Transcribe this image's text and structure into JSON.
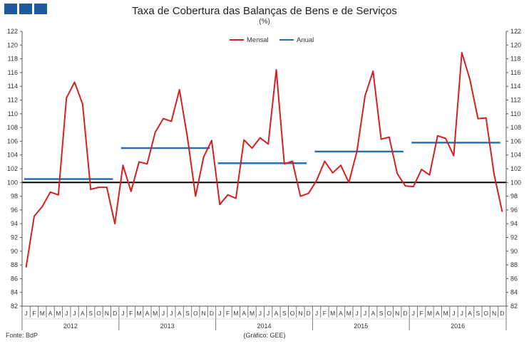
{
  "header": {
    "title": "Taxa de Cobertura das Balanças de Bens e de Serviços",
    "subtitle": "(%)"
  },
  "footer": {
    "source": "Fonte: BdP",
    "credit": "(Gráfico: GEE)"
  },
  "colors": {
    "mensal": "#d42020",
    "anual": "#2a6fb0",
    "reference": "#000000",
    "logo": "#1e5aa0"
  },
  "chart_data": {
    "type": "line",
    "title": "Taxa de Cobertura das Balanças de Bens e de Serviços",
    "subtitle": "(%)",
    "ylim": [
      82,
      122
    ],
    "ytick_step": 2,
    "y_axis_both_sides": true,
    "reference_line": 100,
    "legend": {
      "placement": "top-center",
      "entries": [
        "Mensal",
        "Anual"
      ]
    },
    "month_labels": [
      "J",
      "F",
      "M",
      "A",
      "M",
      "J",
      "J",
      "A",
      "S",
      "O",
      "N",
      "D"
    ],
    "years": [
      "2012",
      "2013",
      "2014",
      "2015",
      "2016"
    ],
    "series": [
      {
        "name": "Mensal",
        "color": "#d42020",
        "values": [
          87.7,
          95.1,
          96.5,
          98.6,
          98.2,
          112.3,
          114.6,
          111.4,
          99.0,
          99.3,
          99.3,
          94.0,
          102.5,
          98.7,
          103.0,
          102.7,
          107.3,
          109.3,
          108.9,
          113.5,
          106.5,
          98.0,
          103.7,
          106.1,
          96.8,
          98.2,
          97.7,
          106.2,
          105.0,
          106.5,
          105.6,
          116.4,
          102.7,
          103.1,
          98.0,
          98.4,
          100.3,
          103.1,
          101.4,
          102.5,
          100.0,
          104.5,
          112.6,
          116.2,
          106.3,
          106.6,
          101.3,
          99.5,
          99.4,
          101.9,
          101.1,
          106.8,
          106.4,
          103.9,
          118.9,
          115.0,
          109.3,
          109.4,
          101.2,
          95.8
        ]
      },
      {
        "name": "Anual",
        "color": "#2a6fb0",
        "values": [
          100.5,
          105.0,
          102.8,
          104.5,
          105.8
        ]
      }
    ]
  }
}
